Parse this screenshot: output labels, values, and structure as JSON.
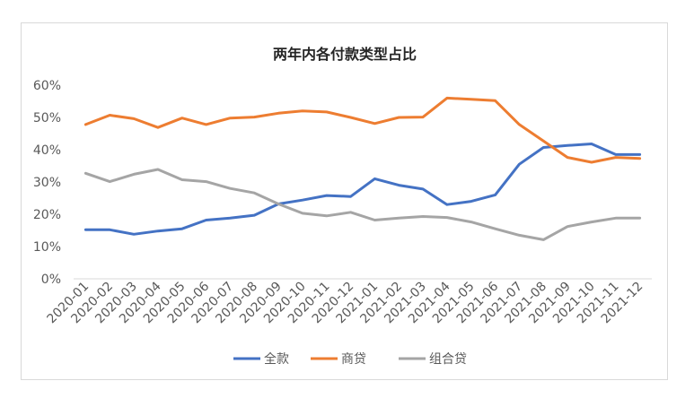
{
  "chart_data": {
    "type": "line",
    "title": "两年内各付款类型占比",
    "xlabel": "",
    "ylabel": "",
    "ylim": [
      0,
      60
    ],
    "yticks": [
      0,
      10,
      20,
      30,
      40,
      50,
      60
    ],
    "ytick_labels": [
      "0%",
      "10%",
      "20%",
      "30%",
      "40%",
      "50%",
      "60%"
    ],
    "grid": false,
    "legend_position": "bottom",
    "categories": [
      "2020-01",
      "2020-02",
      "2020-03",
      "2020-04",
      "2020-05",
      "2020-06",
      "2020-07",
      "2020-08",
      "2020-09",
      "2020-10",
      "2020-11",
      "2020-12",
      "2021-01",
      "2021-02",
      "2021-03",
      "2021-04",
      "2021-05",
      "2021-06",
      "2021-07",
      "2021-08",
      "2021-09",
      "2021-10",
      "2021-11",
      "2021-12"
    ],
    "series": [
      {
        "name": "全款",
        "color": "#4472c4",
        "values": [
          15.2,
          15.2,
          13.8,
          14.8,
          15.5,
          18.2,
          18.8,
          19.7,
          23.2,
          24.4,
          25.8,
          25.5,
          31.0,
          29.0,
          27.8,
          23.0,
          24.0,
          26.0,
          35.5,
          40.7,
          41.3,
          41.8,
          38.5,
          38.5
        ]
      },
      {
        "name": "商贷",
        "color": "#ed7d31",
        "values": [
          47.8,
          50.7,
          49.6,
          46.9,
          49.8,
          47.8,
          49.8,
          50.1,
          51.3,
          52.0,
          51.7,
          50.0,
          48.1,
          50.0,
          50.1,
          56.0,
          55.6,
          55.2,
          47.8,
          42.7,
          37.6,
          36.1,
          37.6,
          37.3
        ]
      },
      {
        "name": "组合贷",
        "color": "#a5a5a5",
        "values": [
          32.7,
          30.1,
          32.4,
          33.9,
          30.7,
          30.1,
          28.0,
          26.6,
          23.2,
          20.3,
          19.5,
          20.6,
          18.2,
          18.8,
          19.3,
          19.0,
          17.6,
          15.5,
          13.5,
          12.1,
          16.2,
          17.6,
          18.8,
          18.8
        ]
      }
    ]
  }
}
